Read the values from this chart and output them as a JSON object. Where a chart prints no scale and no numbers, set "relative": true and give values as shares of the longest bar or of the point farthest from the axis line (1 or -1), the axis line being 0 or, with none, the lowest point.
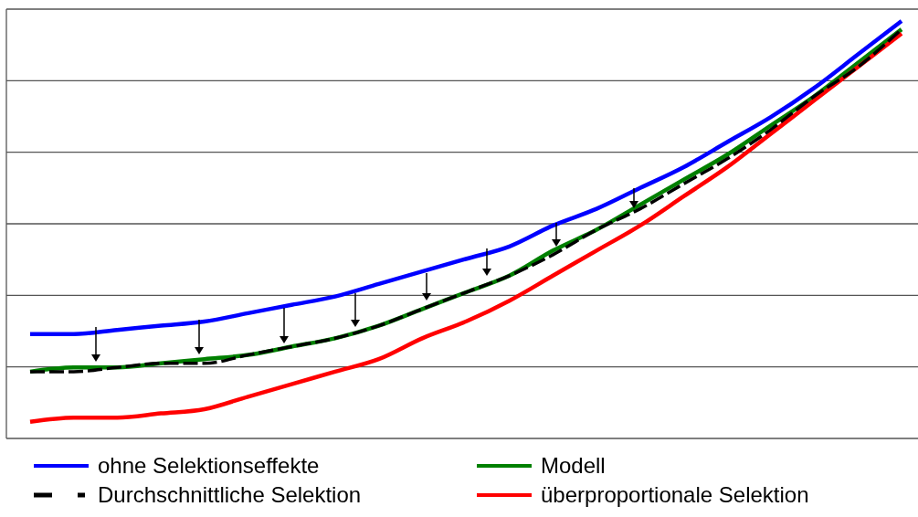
{
  "chart_data": {
    "type": "line",
    "relative": true,
    "grid": "y",
    "legend": "bottom",
    "categories": [
      null,
      null,
      null,
      null,
      null,
      null,
      null,
      null,
      null,
      null,
      null,
      null,
      null,
      null,
      null,
      null,
      null,
      null,
      null,
      null,
      null
    ],
    "series": [
      {
        "name": "ohne Selektionseffekte",
        "color": "#0000ff",
        "line_style": "solid",
        "values": [
          0.25,
          0.25,
          0.26,
          0.27,
          0.28,
          0.3,
          0.32,
          0.34,
          0.37,
          0.4,
          0.43,
          0.46,
          0.51,
          0.55,
          0.6,
          0.65,
          0.71,
          0.77,
          0.84,
          0.92,
          1
        ]
      },
      {
        "name": "Durchschnittliche Selektion",
        "color": "#000000",
        "line_style": "dashed",
        "values": [
          0.16,
          0.16,
          0.17,
          0.18,
          0.18,
          0.2,
          0.22,
          0.24,
          0.27,
          0.31,
          0.35,
          0.39,
          0.44,
          0.5,
          0.55,
          0.61,
          0.67,
          0.74,
          0.82,
          0.89,
          0.98
        ]
      },
      {
        "name": "Modell",
        "color": "#008000",
        "line_style": "solid",
        "values": [
          0.16,
          0.17,
          0.17,
          0.18,
          0.19,
          0.2,
          0.22,
          0.24,
          0.27,
          0.31,
          0.35,
          0.39,
          0.45,
          0.5,
          0.56,
          0.62,
          0.68,
          0.75,
          0.82,
          0.9,
          0.98
        ]
      },
      {
        "name": "überproportionale Selektion",
        "color": "#ff0000",
        "line_style": "solid",
        "values": [
          0.04,
          0.05,
          0.05,
          0.06,
          0.07,
          0.1,
          0.13,
          0.16,
          0.19,
          0.24,
          0.28,
          0.33,
          0.39,
          0.45,
          0.51,
          0.58,
          0.65,
          0.73,
          0.81,
          0.89,
          0.97
        ]
      }
    ]
  }
}
